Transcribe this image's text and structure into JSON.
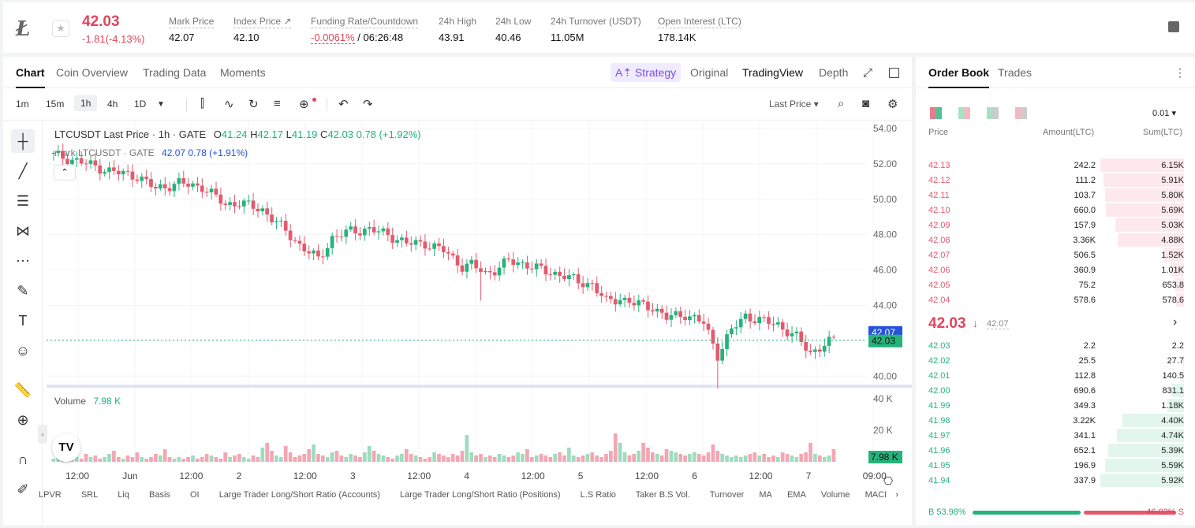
{
  "header": {
    "coin_logo_letter": "Ł",
    "last_price": "42.03",
    "change": "-1.81(-4.13%)",
    "stats": [
      {
        "label": "Mark Price",
        "value": "42.07"
      },
      {
        "label": "Index Price ↗",
        "value": "42.10"
      },
      {
        "label": "Funding Rate/Countdown",
        "value_red": "-0.0061%",
        "value": "/ 06:26:48"
      },
      {
        "label": "24h High",
        "value": "43.91"
      },
      {
        "label": "24h Low",
        "value": "40.46"
      },
      {
        "label": "24h Turnover (USDT)",
        "value": "11.05M"
      },
      {
        "label": "Open Interest (LTC)",
        "value": "178.14K"
      }
    ]
  },
  "chart_panel": {
    "tabs": [
      "Chart",
      "Coin Overview",
      "Trading Data",
      "Moments"
    ],
    "strategy_label": "Strategy",
    "views": [
      "Original",
      "TradingView",
      "Depth"
    ],
    "intervals": [
      "1m",
      "15m",
      "1h",
      "4h",
      "1D"
    ],
    "price_type": "Last Price ▾",
    "legend": {
      "title": "LTCUSDT Last Price · 1h · GATE",
      "o_label": "O",
      "o": "41.24",
      "h_label": "H",
      "h": "42.17",
      "l_label": "L",
      "l": "41.19",
      "c_label": "C",
      "c": "42.03",
      "chg": "0.78 (+1.92%)",
      "mark_title": "mark LTCUSDT · GATE",
      "mark_price": "42.07",
      "mark_chg": "0.78 (+1.91%)",
      "volume_label": "Volume",
      "volume_value": "7.98 K"
    },
    "bottom_indicators": [
      "LPVR",
      "SRL",
      "Liq",
      "Basis",
      "OI",
      "Large Trader Long/Short Ratio (Accounts)",
      "Large Trader Long/Short Ratio (Positions)",
      "L.S Ratio",
      "Taker B.S Vol.",
      "Turnover",
      "MA",
      "EMA",
      "Volume",
      "MACI"
    ]
  },
  "chart_data": {
    "type": "candlestick",
    "symbol": "LTCUSDT",
    "interval": "1h",
    "price_axis": [
      "54.00",
      "52.00",
      "50.00",
      "48.00",
      "46.00",
      "44.00",
      "42.00",
      "40.00"
    ],
    "ylim": [
      39.7,
      54.4
    ],
    "volume_axis": [
      "40 K",
      "20 K"
    ],
    "x_ticks": [
      "12:00",
      "Jun",
      "12:00",
      "2",
      "12:00",
      "3",
      "12:00",
      "4",
      "12:00",
      "5",
      "12:00",
      "6",
      "12:00",
      "7",
      "09:00"
    ],
    "mark_price_label": "42.07",
    "last_price_label": "42.03",
    "last_volume_label": "7.98 K",
    "close_path": [
      [
        0,
        52.5
      ],
      [
        6,
        52.1
      ],
      [
        12,
        51.6
      ],
      [
        18,
        51.3
      ],
      [
        22,
        50.6
      ],
      [
        27,
        50.9
      ],
      [
        32,
        50.7
      ],
      [
        37,
        49.7
      ],
      [
        40,
        49.8
      ],
      [
        45,
        49.4
      ],
      [
        50,
        48.2
      ],
      [
        53,
        47.4
      ],
      [
        57,
        46.6
      ],
      [
        60,
        47.8
      ],
      [
        64,
        48.2
      ],
      [
        68,
        48.3
      ],
      [
        72,
        48.0
      ],
      [
        76,
        47.5
      ],
      [
        80,
        47.5
      ],
      [
        84,
        47.1
      ],
      [
        88,
        46.2
      ],
      [
        90,
        46.3
      ],
      [
        93,
        45.8
      ],
      [
        95,
        46.0
      ],
      [
        98,
        46.5
      ],
      [
        102,
        46.3
      ],
      [
        106,
        45.9
      ],
      [
        110,
        45.7
      ],
      [
        113,
        45.3
      ],
      [
        116,
        45.2
      ],
      [
        119,
        44.2
      ],
      [
        122,
        44.4
      ],
      [
        125,
        44.1
      ],
      [
        129,
        43.9
      ],
      [
        132,
        43.3
      ],
      [
        136,
        43.5
      ],
      [
        140,
        43.0
      ],
      [
        143,
        41.2
      ],
      [
        146,
        42.6
      ],
      [
        149,
        43.4
      ],
      [
        153,
        43.1
      ],
      [
        156,
        42.9
      ],
      [
        160,
        42.2
      ],
      [
        163,
        41.3
      ],
      [
        166,
        41.8
      ],
      [
        168,
        42.03
      ]
    ],
    "volume_k": [
      2,
      5,
      3,
      9,
      4,
      3,
      2,
      5,
      3,
      4,
      2,
      3,
      5,
      7,
      3,
      2,
      4,
      3,
      6,
      3,
      2,
      3,
      5,
      4,
      8,
      3,
      2,
      3,
      2,
      3,
      4,
      2,
      3,
      5,
      4,
      3,
      2,
      6,
      3,
      4,
      5,
      3,
      2,
      4,
      3,
      9,
      12,
      7,
      4,
      3,
      10,
      6,
      3,
      4,
      5,
      8,
      11,
      5,
      4,
      3,
      6,
      7,
      4,
      3,
      5,
      4,
      3,
      6,
      10,
      7,
      5,
      4,
      3,
      2,
      4,
      5,
      8,
      5,
      4,
      3,
      2,
      3,
      6,
      5,
      4,
      3,
      5,
      4,
      7,
      17,
      6,
      4,
      5,
      3,
      4,
      3,
      5,
      4,
      3,
      4,
      6,
      5,
      8,
      3,
      4,
      5,
      4,
      3,
      5,
      6,
      4,
      9,
      4,
      3,
      4,
      5,
      6,
      4,
      3,
      5,
      7,
      18,
      12,
      6,
      4,
      5,
      7,
      12,
      9,
      6,
      5,
      4,
      8,
      7,
      6,
      5,
      4,
      5,
      6,
      5,
      4,
      6,
      11,
      7,
      5,
      4,
      3,
      4,
      3,
      4,
      5,
      6,
      4,
      5,
      3,
      4,
      3,
      6,
      5,
      4,
      3,
      5,
      6,
      12,
      5,
      4,
      3,
      4,
      8
    ]
  },
  "order_book": {
    "tabs": [
      "Order Book",
      "Trades"
    ],
    "precision": "0.01 ▾",
    "headers": [
      "Price",
      "Amount(LTC)",
      "Sum(LTC)"
    ],
    "asks": [
      {
        "price": "42.13",
        "amount": "242.2",
        "sum": "6.15K",
        "depth": 1.0
      },
      {
        "price": "42.12",
        "amount": "111.2",
        "sum": "5.91K",
        "depth": 0.96
      },
      {
        "price": "42.11",
        "amount": "103.7",
        "sum": "5.80K",
        "depth": 0.94
      },
      {
        "price": "42.10",
        "amount": "660.0",
        "sum": "5.69K",
        "depth": 0.93
      },
      {
        "price": "42.09",
        "amount": "157.9",
        "sum": "5.03K",
        "depth": 0.82
      },
      {
        "price": "42.08",
        "amount": "3.36K",
        "sum": "4.88K",
        "depth": 0.79
      },
      {
        "price": "42.07",
        "amount": "506.5",
        "sum": "1.52K",
        "depth": 0.25
      },
      {
        "price": "42.06",
        "amount": "360.9",
        "sum": "1.01K",
        "depth": 0.16
      },
      {
        "price": "42.05",
        "amount": "75.2",
        "sum": "653.8",
        "depth": 0.11
      },
      {
        "price": "42.04",
        "amount": "578.6",
        "sum": "578.6",
        "depth": 0.09
      }
    ],
    "mid_price": "42.03",
    "mid_mark": "42.07",
    "bids": [
      {
        "price": "42.03",
        "amount": "2.2",
        "sum": "2.2",
        "depth": 0.0
      },
      {
        "price": "42.02",
        "amount": "25.5",
        "sum": "27.7",
        "depth": 0.005
      },
      {
        "price": "42.01",
        "amount": "112.8",
        "sum": "140.5",
        "depth": 0.02
      },
      {
        "price": "42.00",
        "amount": "690.6",
        "sum": "831.1",
        "depth": 0.14
      },
      {
        "price": "41.99",
        "amount": "349.3",
        "sum": "1.18K",
        "depth": 0.2
      },
      {
        "price": "41.98",
        "amount": "3.22K",
        "sum": "4.40K",
        "depth": 0.74
      },
      {
        "price": "41.97",
        "amount": "341.1",
        "sum": "4.74K",
        "depth": 0.8
      },
      {
        "price": "41.96",
        "amount": "652.1",
        "sum": "5.39K",
        "depth": 0.91
      },
      {
        "price": "41.95",
        "amount": "196.9",
        "sum": "5.59K",
        "depth": 0.94
      },
      {
        "price": "41.94",
        "amount": "337.9",
        "sum": "5.92K",
        "depth": 1.0
      }
    ],
    "buy_ratio": "B 53.98%",
    "sell_ratio": "46.02% S",
    "buy_fraction": 0.5398
  },
  "colors": {
    "up": "#26b37b",
    "down": "#e35a6e",
    "ask_bg": "#fde9ec",
    "bid_bg": "#e3f6ec",
    "accent": "#2653d9"
  }
}
